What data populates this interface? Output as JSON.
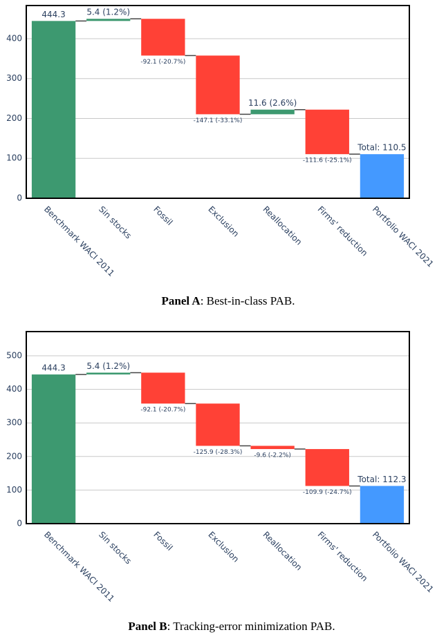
{
  "chart_data": [
    {
      "type": "waterfall",
      "categories": [
        "Benchmark WACI 2011",
        "Sin stocks",
        "Fossil",
        "Exclusion",
        "Reallocation",
        "Firms' reduction",
        "Portfolio WACI 2021"
      ],
      "measure": [
        "absolute",
        "relative",
        "relative",
        "relative",
        "relative",
        "relative",
        "total"
      ],
      "values": [
        444.3,
        5.4,
        -92.1,
        -147.1,
        11.6,
        -111.6,
        110.5
      ],
      "value_labels": [
        "444.3",
        "5.4 (1.2%)",
        "-92.1 (-20.7%)",
        "-147.1 (-33.1%)",
        "11.6 (2.6%)",
        "-111.6 (-25.1%)",
        "Total: 110.5"
      ],
      "colors": {
        "increasing": "#3d9970",
        "decreasing": "#ff4136",
        "total": "#4499ff"
      },
      "ylim": [
        0,
        483
      ],
      "yticks": [
        0,
        100,
        200,
        300,
        400
      ],
      "grid": true,
      "caption": {
        "label": "Panel A",
        "text": ": Best-in-class PAB."
      }
    },
    {
      "type": "waterfall",
      "categories": [
        "Benchmark WACI 2011",
        "Sin stocks",
        "Fossil",
        "Exclusion",
        "Reallocation",
        "Firms' reduction",
        "Portfolio WACI 2021"
      ],
      "measure": [
        "absolute",
        "relative",
        "relative",
        "relative",
        "relative",
        "relative",
        "total"
      ],
      "values": [
        444.3,
        5.4,
        -92.1,
        -125.9,
        -9.6,
        -109.9,
        112.3
      ],
      "value_labels": [
        "444.3",
        "5.4 (1.2%)",
        "-92.1 (-20.7%)",
        "-125.9 (-28.3%)",
        "-9.6 (-2.2%)",
        "-109.9 (-24.7%)",
        "Total: 112.3"
      ],
      "colors": {
        "increasing": "#3d9970",
        "decreasing": "#ff4136",
        "total": "#4499ff"
      },
      "ylim": [
        0,
        572
      ],
      "yticks": [
        0,
        100,
        200,
        300,
        400,
        500
      ],
      "grid": true,
      "caption": {
        "label": "Panel B",
        "text": ": Tracking-error minimization PAB."
      }
    }
  ]
}
